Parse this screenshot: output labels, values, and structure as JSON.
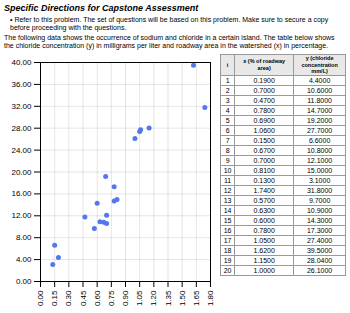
{
  "chart_data": {
    "type": "scatter",
    "title": "Specific Directions for Capstone Assessment",
    "annotations": [
      "• Refer to this problem. The set of questions will be based on this problem. Make sure to secure a copy before proceeding with the questions.",
      "The following data shows the occurrence of sodium and chloride in a certain island. The table below shows the chloride concentration (y) in milligrams per liter and roadway area in the watershed (x) in percentage."
    ],
    "table": {
      "columns": [
        "i",
        "x (% of roadway\narea)",
        "y (chloride\nconcentration\nmm/L)"
      ],
      "rows": [
        [
          "1",
          "0.1900",
          "4.4000"
        ],
        [
          "2",
          "0.7000",
          "10.6000"
        ],
        [
          "3",
          "0.4700",
          "11.8000"
        ],
        [
          "4",
          "0.7800",
          "14.7000"
        ],
        [
          "5",
          "0.6900",
          "19.2000"
        ],
        [
          "6",
          "1.0600",
          "27.7000"
        ],
        [
          "7",
          "0.1500",
          "6.6000"
        ],
        [
          "8",
          "0.6700",
          "10.8000"
        ],
        [
          "9",
          "0.7000",
          "12.1000"
        ],
        [
          "10",
          "0.8100",
          "15.0000"
        ],
        [
          "11",
          "0.1300",
          "3.1000"
        ],
        [
          "12",
          "1.7400",
          "31.8000"
        ],
        [
          "13",
          "0.5700",
          "9.7000"
        ],
        [
          "14",
          "0.6300",
          "10.9000"
        ],
        [
          "15",
          "0.6000",
          "14.3000"
        ],
        [
          "16",
          "0.7800",
          "17.3000"
        ],
        [
          "17",
          "1.0500",
          "27.4000"
        ],
        [
          "18",
          "1.6200",
          "39.5000"
        ],
        [
          "19",
          "1.1500",
          "28.0400"
        ],
        [
          "20",
          "1.0000",
          "26.1000"
        ]
      ]
    },
    "x": [
      0.19,
      0.7,
      0.47,
      0.78,
      0.69,
      1.06,
      0.15,
      0.67,
      0.7,
      0.81,
      0.13,
      1.74,
      0.57,
      0.63,
      0.6,
      0.78,
      1.05,
      1.62,
      1.15,
      1.0
    ],
    "values": [
      4.4,
      10.6,
      11.8,
      14.7,
      19.2,
      27.7,
      6.6,
      10.8,
      12.1,
      15.0,
      3.1,
      31.8,
      9.7,
      10.9,
      14.3,
      17.3,
      27.4,
      39.5,
      28.04,
      26.1
    ],
    "color": "#5577ee",
    "xlim": [
      0.0,
      1.8
    ],
    "ylim": [
      0.0,
      40.0
    ],
    "xticks": [
      {
        "value": 0.0,
        "label": "0.00"
      },
      0.15,
      {
        "value": 0.3,
        "label": "0.30"
      },
      0.45,
      {
        "value": 0.6,
        "label": "0.60"
      },
      0.75,
      {
        "value": 0.9,
        "label": "0.90"
      },
      1.05,
      {
        "value": 1.2,
        "label": "1.20"
      },
      1.35,
      {
        "value": 1.5,
        "label": "1.50"
      },
      1.65,
      {
        "value": 1.8,
        "label": "1.80"
      }
    ],
    "yticks": [
      {
        "value": 0.0,
        "label": "0.00"
      },
      {
        "value": 4.0,
        "label": "4.00"
      },
      {
        "value": 8.0,
        "label": "8.00"
      },
      {
        "value": 12.0,
        "label": "12.00"
      },
      {
        "value": 16.0,
        "label": "16.00"
      },
      {
        "value": 20.0,
        "label": "20.00"
      },
      {
        "value": 24.0,
        "label": "24.00"
      },
      {
        "value": 28.0,
        "label": "28.00"
      },
      {
        "value": 32.0,
        "label": "32.00"
      },
      {
        "value": 36.0,
        "label": "36.00"
      },
      {
        "value": 40.0,
        "label": "40.00"
      }
    ],
    "grid": true
  }
}
